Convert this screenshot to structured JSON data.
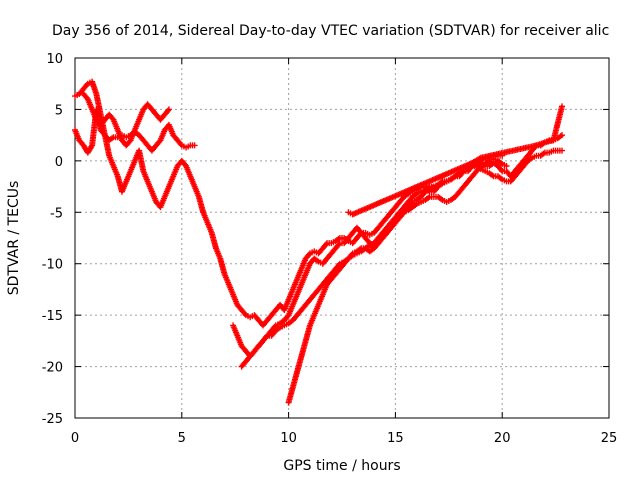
{
  "chart_data": {
    "type": "scatter",
    "title": "Day 356 of 2014, Sidereal Day-to-day VTEC variation (SDTVAR) for receiver alic",
    "xlabel": "GPS time / hours",
    "ylabel": "SDTVAR / TECUs",
    "xlim": [
      0,
      25
    ],
    "ylim": [
      -25,
      10
    ],
    "xticks": [
      0,
      5,
      10,
      15,
      20,
      25
    ],
    "yticks": [
      -25,
      -20,
      -15,
      -10,
      -5,
      0,
      5,
      10
    ],
    "grid": true,
    "marker": "plus",
    "color": "#ff0000",
    "series": [
      {
        "x": [
          0.0,
          0.2,
          0.4,
          0.6,
          0.8,
          1.0,
          1.2,
          1.4,
          1.6,
          1.8,
          2.0,
          2.2,
          2.4,
          2.6,
          2.8,
          3.0,
          3.2,
          3.4,
          3.6,
          3.8,
          4.0,
          4.2,
          4.4,
          4.6,
          4.8,
          5.0,
          5.2,
          5.4,
          5.6
        ],
        "y": [
          3.0,
          2.0,
          1.5,
          0.8,
          1.5,
          5.0,
          3.0,
          2.5,
          2.0,
          2.3,
          2.3,
          2.5,
          2.3,
          2.5,
          2.8,
          2.5,
          2.0,
          1.5,
          1.0,
          1.5,
          2.0,
          3.0,
          3.5,
          2.5,
          2.0,
          1.5,
          1.3,
          1.5,
          1.5
        ]
      },
      {
        "x": [
          0.0,
          0.2,
          0.4,
          0.6,
          0.8,
          1.0,
          1.2,
          1.4,
          1.6,
          1.8,
          2.0,
          2.2,
          2.4,
          2.6,
          2.8,
          3.0,
          3.2,
          3.4,
          3.6,
          3.8,
          4.0,
          4.2,
          4.4,
          4.6,
          4.8,
          5.0,
          5.2,
          5.4,
          5.6,
          5.8,
          6.0,
          6.2,
          6.4,
          6.6,
          6.8,
          7.0,
          7.2,
          7.4,
          7.6,
          7.8,
          8.0,
          8.2,
          8.4,
          8.6,
          8.8,
          9.0,
          9.2,
          9.4,
          9.6,
          9.8,
          10.0,
          10.2,
          10.4,
          10.6,
          10.8,
          11.0,
          11.2,
          11.4,
          11.6,
          11.8,
          12.0,
          12.2,
          12.4,
          12.6,
          12.8,
          13.0,
          13.2,
          13.4,
          13.6,
          13.8,
          14.0,
          14.2,
          14.4,
          14.6,
          14.8,
          15.0,
          15.2,
          15.4,
          15.6,
          15.8,
          16.0,
          16.2,
          16.4,
          16.6,
          16.8,
          17.0,
          17.2,
          17.4,
          17.6,
          17.8,
          18.0,
          18.2,
          18.4,
          18.6,
          18.8,
          19.0,
          19.2,
          19.4,
          19.6,
          19.8,
          20.0,
          20.2,
          20.4,
          20.6,
          20.8,
          21.0,
          21.2,
          21.4,
          21.6,
          21.8,
          22.0,
          22.2,
          22.4,
          22.6,
          22.8
        ],
        "y": [
          6.3,
          6.5,
          7.0,
          7.5,
          7.7,
          6.5,
          4.5,
          2.5,
          0.5,
          -0.5,
          -1.5,
          -3.0,
          -2.0,
          -1.0,
          0.0,
          1.0,
          -1.0,
          -2.0,
          -3.0,
          -4.0,
          -4.5,
          -3.5,
          -2.5,
          -1.5,
          -0.5,
          0.0,
          -0.5,
          -1.5,
          -2.5,
          -3.5,
          -5.0,
          -6.0,
          -7.0,
          -8.5,
          -9.5,
          -11.0,
          -12.0,
          -13.0,
          -14.0,
          -14.5,
          -15.0,
          -15.2,
          -15.0,
          -15.5,
          -16.0,
          -15.5,
          -15.0,
          -14.5,
          -14.0,
          -14.5,
          -13.5,
          -12.5,
          -11.5,
          -10.5,
          -9.5,
          -9.0,
          -8.8,
          -9.0,
          -8.5,
          -8.0,
          -8.0,
          -7.8,
          -7.5,
          -7.5,
          -7.8,
          -8.0,
          -7.5,
          -7.0,
          -7.0,
          -7.2,
          -7.0,
          -6.5,
          -6.0,
          -5.5,
          -5.0,
          -4.5,
          -4.0,
          -3.5,
          -3.2,
          -3.0,
          -2.8,
          -2.5,
          -2.5,
          -3.0,
          -3.0,
          -2.5,
          -2.0,
          -2.0,
          -1.8,
          -1.5,
          -1.5,
          -1.0,
          -1.0,
          -0.5,
          -0.5,
          -0.2,
          -0.5,
          -0.5,
          -0.2,
          -0.5,
          -1.0,
          -1.0,
          -1.5,
          -1.0,
          -0.5,
          0.0,
          0.5,
          1.0,
          1.5,
          1.5,
          1.8,
          2.0,
          2.0,
          2.2,
          2.5
        ]
      },
      {
        "x": [
          7.8,
          8.0,
          8.2,
          8.4,
          8.6,
          8.8,
          9.0,
          9.2,
          9.4,
          9.6,
          9.8,
          10.0,
          10.2,
          10.4,
          10.6,
          10.8,
          11.0,
          11.2,
          11.4,
          11.6,
          11.8,
          12.0,
          12.2,
          12.4,
          12.6,
          12.8,
          13.0,
          13.2,
          13.4,
          13.6,
          13.8,
          14.0,
          14.2,
          14.4,
          14.6,
          14.8,
          15.0,
          15.2,
          15.4,
          15.6,
          15.8,
          16.0,
          16.2,
          16.4,
          16.6,
          16.8,
          17.0,
          17.2,
          17.4,
          17.6,
          17.8,
          18.0,
          18.2,
          18.4,
          18.6,
          18.8,
          19.0,
          19.2,
          19.4,
          19.6,
          19.8,
          20.0,
          20.2,
          20.4,
          20.6,
          20.8,
          21.0,
          21.2,
          21.4,
          21.6,
          21.8,
          22.0,
          22.2,
          22.4,
          22.6,
          22.8
        ],
        "y": [
          -20.0,
          -19.5,
          -19.0,
          -18.5,
          -18.0,
          -17.5,
          -17.0,
          -16.5,
          -16.0,
          -15.8,
          -15.5,
          -15.0,
          -14.0,
          -13.0,
          -12.0,
          -11.0,
          -10.0,
          -9.5,
          -9.8,
          -10.0,
          -9.5,
          -9.0,
          -8.5,
          -8.0,
          -8.0,
          -7.5,
          -7.0,
          -6.5,
          -7.0,
          -7.5,
          -8.0,
          -8.5,
          -8.0,
          -7.5,
          -7.0,
          -6.5,
          -6.0,
          -5.5,
          -5.0,
          -4.5,
          -4.0,
          -3.8,
          -3.5,
          -3.0,
          -2.8,
          -2.5,
          -2.5,
          -2.2,
          -2.0,
          -1.8,
          -1.5,
          -1.2,
          -1.0,
          -0.8,
          -0.5,
          -0.5,
          -0.8,
          -1.0,
          -1.2,
          -1.5,
          -1.5,
          -1.8,
          -2.0,
          -2.0,
          -1.5,
          -1.0,
          -0.5,
          0.0,
          0.3,
          0.5,
          0.5,
          0.8,
          0.8,
          1.0,
          1.0,
          1.0
        ]
      },
      {
        "x": [
          7.4,
          7.6,
          7.8,
          8.0,
          8.2,
          8.4,
          8.6,
          8.8,
          9.0,
          9.2,
          9.4,
          9.6,
          9.8,
          10.0,
          10.2,
          10.4,
          10.6,
          10.8,
          11.0,
          11.2,
          11.4,
          11.6,
          11.8,
          12.0,
          12.2,
          12.4,
          12.6,
          12.8,
          13.0,
          13.2,
          13.4,
          13.6,
          13.8,
          14.0,
          14.2,
          14.4,
          14.6,
          14.8,
          15.0,
          15.2,
          15.4,
          15.6,
          15.8,
          16.0,
          16.2,
          16.4,
          16.6,
          16.8,
          17.0,
          17.2,
          17.4,
          17.6,
          17.8,
          18.0,
          18.2,
          18.4,
          18.6,
          18.8,
          19.0,
          19.2,
          19.4,
          19.6,
          19.8,
          20.0
        ],
        "y": [
          -16.0,
          -17.0,
          -18.0,
          -18.5,
          -19.0,
          -18.5,
          -18.0,
          -17.5,
          -17.0,
          -17.0,
          -16.5,
          -16.2,
          -16.0,
          -15.8,
          -15.5,
          -15.0,
          -14.5,
          -14.0,
          -13.5,
          -13.0,
          -12.5,
          -12.0,
          -11.5,
          -11.0,
          -10.5,
          -10.0,
          -9.8,
          -9.5,
          -9.2,
          -9.0,
          -8.8,
          -8.5,
          -8.2,
          -8.0,
          -7.5,
          -7.0,
          -6.5,
          -6.0,
          -5.5,
          -5.0,
          -4.5,
          -4.0,
          -3.5,
          -3.2,
          -3.0,
          -2.8,
          -2.5,
          -2.5,
          -2.3,
          -2.0,
          -2.0,
          -1.8,
          -1.5,
          -1.2,
          -1.0,
          -0.8,
          -0.5,
          -0.3,
          0.0,
          0.2,
          0.3,
          0.5,
          0.5,
          0.5
        ]
      },
      {
        "x": [
          10.0,
          10.2,
          10.4,
          10.6,
          10.8,
          11.0,
          11.2,
          11.4,
          11.6,
          11.8,
          12.0,
          12.2,
          12.4,
          12.6,
          12.8,
          13.0,
          13.2,
          13.4,
          13.6,
          13.8,
          14.0,
          14.2,
          14.4,
          14.6,
          14.8,
          15.0,
          15.2,
          15.4,
          15.6,
          15.8,
          16.0,
          16.2,
          16.4,
          16.6,
          16.8,
          17.0,
          17.2,
          17.4,
          17.6,
          17.8,
          18.0,
          18.2,
          18.4,
          18.6,
          18.8,
          19.0,
          19.2,
          19.4,
          19.6,
          19.8,
          20.0,
          20.2
        ],
        "y": [
          -23.5,
          -22.0,
          -20.5,
          -19.0,
          -17.5,
          -16.0,
          -15.0,
          -14.0,
          -13.0,
          -12.0,
          -11.5,
          -11.0,
          -10.5,
          -10.0,
          -9.5,
          -9.0,
          -8.8,
          -8.5,
          -8.5,
          -8.8,
          -8.5,
          -8.0,
          -7.5,
          -7.0,
          -6.5,
          -6.0,
          -5.5,
          -5.0,
          -4.8,
          -4.5,
          -4.2,
          -4.0,
          -3.8,
          -3.5,
          -3.5,
          -3.5,
          -3.8,
          -4.0,
          -3.8,
          -3.5,
          -3.0,
          -2.5,
          -2.0,
          -1.5,
          -1.0,
          -0.5,
          -0.3,
          0.0,
          0.2,
          0.0,
          -0.3,
          -0.5
        ]
      },
      {
        "x": [
          0.4,
          0.6,
          0.8,
          1.0,
          1.2,
          1.4,
          1.6,
          1.8,
          2.0,
          2.2,
          2.4,
          2.6,
          2.8,
          3.0,
          3.2,
          3.4,
          3.6,
          3.8,
          4.0,
          4.2,
          4.4
        ],
        "y": [
          6.5,
          6.0,
          5.0,
          4.0,
          3.5,
          4.0,
          4.5,
          4.0,
          3.0,
          2.0,
          1.5,
          2.0,
          3.0,
          4.0,
          5.0,
          5.5,
          5.0,
          4.5,
          4.0,
          4.5,
          5.0
        ]
      },
      {
        "x": [
          12.8,
          13.0,
          18.6,
          19.0,
          21.6,
          22.0,
          22.4,
          22.8
        ],
        "y": [
          -5.0,
          -5.2,
          -0.2,
          0.3,
          1.5,
          1.8,
          2.0,
          5.3
        ]
      }
    ]
  }
}
